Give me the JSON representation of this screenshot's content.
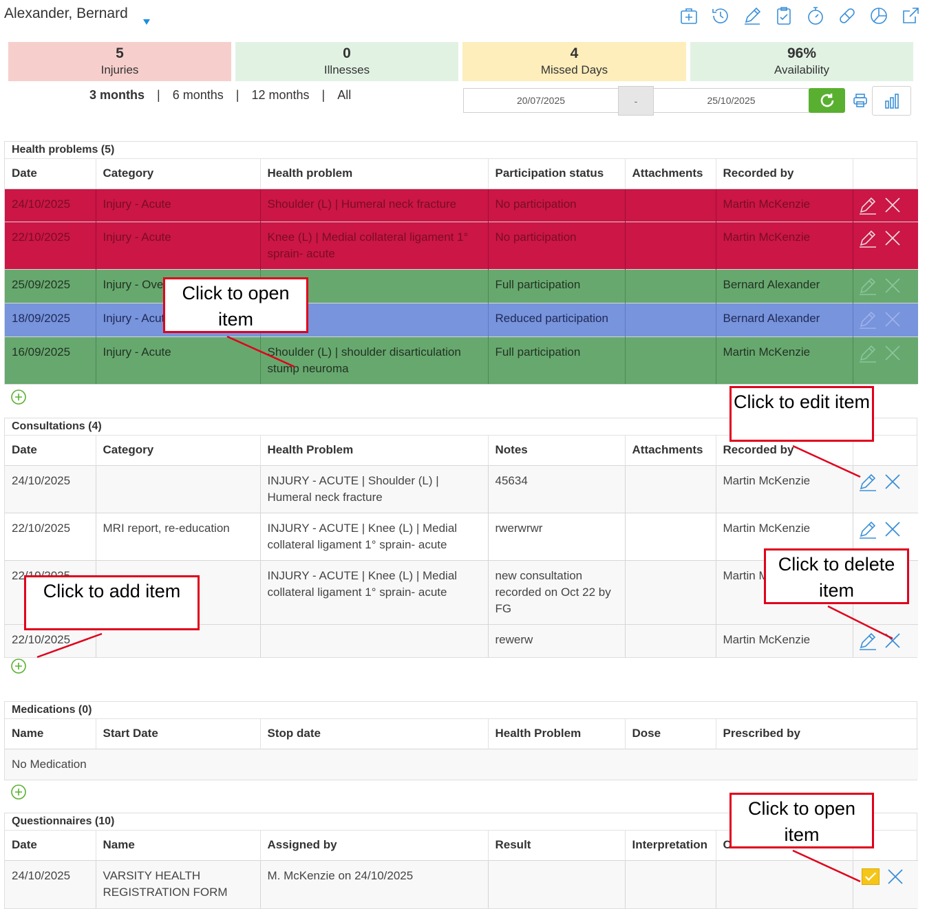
{
  "header": {
    "patient_name": "Alexander, Bernard",
    "toolbar_icons": [
      "medical-case-icon",
      "history-icon",
      "pencil-icon",
      "checklist-icon",
      "stopwatch-icon",
      "pill-icon",
      "pie-chart-icon",
      "external-link-icon"
    ]
  },
  "stats": [
    {
      "value": "5",
      "label": "Injuries",
      "color": "#f6cfcc"
    },
    {
      "value": "0",
      "label": "Illnesses",
      "color": "#e1f2e3"
    },
    {
      "value": "4",
      "label": "Missed Days",
      "color": "#fdeebc"
    },
    {
      "value": "96%",
      "label": "Availability",
      "color": "#e1f2e3"
    }
  ],
  "periods": {
    "p3": "3 months",
    "p6": "6 months",
    "p12": "12 months",
    "all": "All",
    "sep": "|"
  },
  "date_range": {
    "from": "20/07/2025",
    "sep": "-",
    "to": "25/10/2025"
  },
  "health_problems": {
    "title": "Health problems (5)",
    "headers": [
      "Date",
      "Category",
      "Health problem",
      "Participation status",
      "Attachments",
      "Recorded by"
    ],
    "rows": [
      {
        "date": "24/10/2025",
        "category": "Injury - Acute",
        "problem": "Shoulder (L) | Humeral neck fracture",
        "status": "No participation",
        "attachments": "",
        "recorded_by": "Martin McKenzie",
        "color": "#cb1646"
      },
      {
        "date": "22/10/2025",
        "category": "Injury - Acute",
        "problem": "Knee (L) | Medial collateral ligament 1° sprain- acute",
        "status": "No participation",
        "attachments": "",
        "recorded_by": "Martin McKenzie",
        "color": "#cb1646"
      },
      {
        "date": "25/09/2025",
        "category": "Injury - Ove",
        "problem": "",
        "status": "Full participation",
        "attachments": "",
        "recorded_by": "Bernard Alexander",
        "color": "#67a86f"
      },
      {
        "date": "18/09/2025",
        "category": "Injury - Acut",
        "problem": "in (L)",
        "status": "Reduced participation",
        "attachments": "",
        "recorded_by": "Bernard Alexander",
        "color": "#7794dd"
      },
      {
        "date": "16/09/2025",
        "category": "Injury - Acute",
        "problem": "Shoulder (L) | shoulder disarticulation stump neuroma",
        "status": "Full participation",
        "attachments": "",
        "recorded_by": "Martin McKenzie",
        "color": "#67a86f"
      }
    ]
  },
  "consultations": {
    "title": "Consultations (4)",
    "headers": [
      "Date",
      "Category",
      "Health Problem",
      "Notes",
      "Attachments",
      "Recorded by"
    ],
    "rows": [
      {
        "date": "24/10/2025",
        "category": "",
        "problem": "INJURY - ACUTE | Shoulder (L) | Humeral neck fracture",
        "notes": "45634",
        "attachments": "",
        "recorded_by": "Martin McKenzie"
      },
      {
        "date": "22/10/2025",
        "category": "MRI report, re-education",
        "problem": "INJURY - ACUTE | Knee (L) | Medial collateral ligament 1° sprain- acute",
        "notes": "rwerwrwr",
        "attachments": "",
        "recorded_by": "Martin McKenzie"
      },
      {
        "date": "22/10/2025",
        "category": "",
        "problem": "INJURY - ACUTE | Knee (L) | Medial collateral ligament 1° sprain- acute",
        "notes": "new consultation recorded on Oct 22 by FG",
        "attachments": "",
        "recorded_by": "Martin M"
      },
      {
        "date": "22/10/2025",
        "category": "",
        "problem": "",
        "notes": "rewerw",
        "attachments": "",
        "recorded_by": "Martin McKenzie"
      }
    ]
  },
  "medications": {
    "title": "Medications (0)",
    "headers": [
      "Name",
      "Start Date",
      "Stop date",
      "Health Problem",
      "Dose",
      "Prescribed by"
    ],
    "empty": "No Medication"
  },
  "questionnaires": {
    "title": "Questionnaires (10)",
    "headers": [
      "Date",
      "Name",
      "Assigned by",
      "Result",
      "Interpretation",
      "C"
    ],
    "rows": [
      {
        "date": "24/10/2025",
        "name": "VARSITY HEALTH REGISTRATION FORM",
        "assigned_by": "M. McKenzie on 24/10/2025",
        "result": "",
        "interpretation": "",
        "extra": ""
      }
    ]
  },
  "callouts": {
    "open_item_1": "Click to open item",
    "edit_item": "Click to edit item",
    "delete_item": "Click to delete item",
    "add_item": "Click to add item",
    "open_item_2": "Click to open item"
  },
  "colors": {
    "accent_green": "#59b030",
    "callout_red": "#e0001b",
    "icon_blue": "#3a8fd8"
  }
}
